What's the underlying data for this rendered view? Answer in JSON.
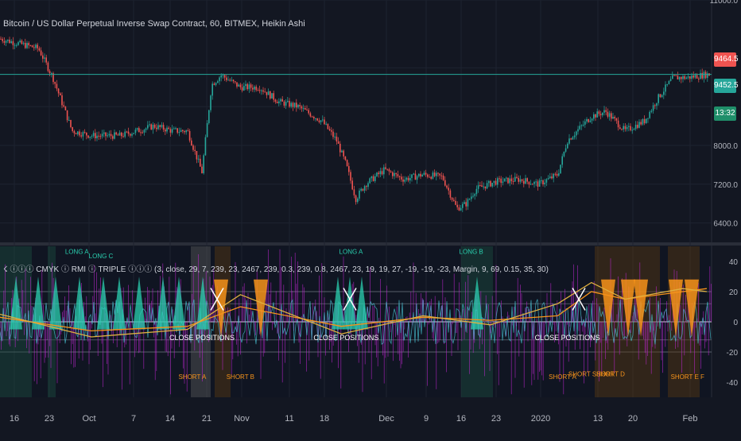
{
  "title": "Bitcoin / US Dollar Perpetual Inverse Swap Contract, 60, BITMEX, Heikin Ashi",
  "indicator_legend": "☇ ⓘⓘⓘ CMYK ⓘ RMI ⓘ TRIPLE ⓘⓘⓘ (3, close, 29, 7, 239, 23, 2467, 239, 0.3, 239, 0.8, 2467, 23, 19, 19, 27, -19, -19, -23, Margin, 9, 69, 0.15, 35, 30)",
  "price_labels": {
    "current": "9464.5",
    "secondary": "9452.5",
    "countdown": "13:32"
  },
  "colors": {
    "background": "#131722",
    "up": "#26a69a",
    "down": "#ef5350",
    "orange": "#f7931a",
    "magenta": "#c026d3",
    "teal": "#2ad0b0",
    "grid": "#1e2330"
  },
  "chart_data": [
    {
      "type": "line",
      "title": "",
      "series": [
        {
          "x": [
            "Sep 12",
            "Sep 16",
            "Sep 20",
            "Sep 23",
            "Sep 27",
            "Oct 1",
            "Oct 7",
            "Oct 14",
            "Oct 18",
            "Oct 21",
            "Oct 24",
            "Oct 26",
            "Oct 28",
            "Nov 1",
            "Nov 5",
            "Nov 9",
            "Nov 13",
            "Nov 18",
            "Nov 21",
            "Nov 23",
            "Nov 25",
            "Nov 27",
            "Dec 1",
            "Dec 5",
            "Dec 9",
            "Dec 13",
            "Dec 16",
            "Dec 18",
            "Dec 20",
            "Dec 24",
            "Dec 29",
            "Jan 2",
            "Jan 6",
            "Jan 8",
            "Jan 13",
            "Jan 16",
            "Jan 20",
            "Jan 24",
            "Jan 27",
            "Jan 30",
            "Feb 2",
            "Feb 6"
          ],
          "values": [
            10200,
            10100,
            10000,
            9400,
            8300,
            8200,
            8200,
            8400,
            8300,
            8300,
            7450,
            9250,
            9450,
            9200,
            9200,
            8900,
            8800,
            8500,
            8100,
            7600,
            6900,
            7200,
            7500,
            7300,
            7400,
            7350,
            6700,
            6800,
            7100,
            7250,
            7300,
            7200,
            7400,
            8100,
            8600,
            8700,
            8300,
            8500,
            9000,
            9400,
            9400,
            9464.5
          ]
        }
      ],
      "ylim": [
        6000,
        11000
      ],
      "yticks": [
        "11000.0",
        "8000.0",
        "7200.0",
        "6400.0"
      ],
      "horizontal_line": 9464.5
    },
    {
      "type": "line",
      "series": [
        {
          "x": [
            "Sep 12",
            "Oct 1",
            "Oct 21",
            "Nov 1",
            "Nov 22",
            "Dec 9",
            "Dec 23",
            "Jan 6",
            "Jan 13",
            "Jan 20",
            "Feb 1",
            "Feb 6"
          ],
          "values": [
            3,
            -6,
            -3,
            10,
            -3,
            3,
            1,
            4,
            20,
            15,
            20,
            22
          ]
        },
        {
          "x": [
            "Sep 12",
            "Oct 1",
            "Oct 21",
            "Nov 1",
            "Nov 22",
            "Dec 9",
            "Dec 23",
            "Jan 6",
            "Jan 13",
            "Jan 20",
            "Feb 1",
            "Feb 6"
          ],
          "values": [
            5,
            -10,
            -5,
            18,
            -8,
            4,
            -2,
            12,
            26,
            15,
            22,
            20
          ]
        }
      ],
      "ylim": [
        -50,
        50
      ],
      "yticks": [
        "40",
        "20",
        "0",
        "-20",
        "-40"
      ],
      "annotations": [
        {
          "text": "CLOSE POSITIONS",
          "x": "Oct 24",
          "y": -12
        },
        {
          "text": "CLOSE POSITIONS",
          "x": "Nov 23",
          "y": -12
        },
        {
          "text": "CLOSE POSITIONS",
          "x": "Jan 8",
          "y": -12
        },
        {
          "text": "SHORT A",
          "x": "Oct 22",
          "y": -38
        },
        {
          "text": "SHORT B",
          "x": "Nov 1",
          "y": -38
        },
        {
          "text": "SHORT A",
          "x": "Jan 7",
          "y": -38
        },
        {
          "text": "SHORT SHORT",
          "x": "Jan 13",
          "y": -36
        },
        {
          "text": "SHORT D",
          "x": "Jan 17",
          "y": -36
        },
        {
          "text": "SHORT E F",
          "x": "Feb 2",
          "y": -38
        },
        {
          "text": "LONG A",
          "x": "Sep 28",
          "y": 45
        },
        {
          "text": "LONG C",
          "x": "Oct 3",
          "y": 42
        },
        {
          "text": "LONG A",
          "x": "Nov 24",
          "y": 45
        },
        {
          "text": "LONG B",
          "x": "Dec 19",
          "y": 45
        }
      ]
    }
  ],
  "xaxis_labels": [
    "16",
    "23",
    "Oct",
    "7",
    "14",
    "21",
    "Nov",
    "11",
    "18",
    "Dec",
    "9",
    "16",
    "23",
    "2020",
    "13",
    "20",
    "Feb"
  ]
}
